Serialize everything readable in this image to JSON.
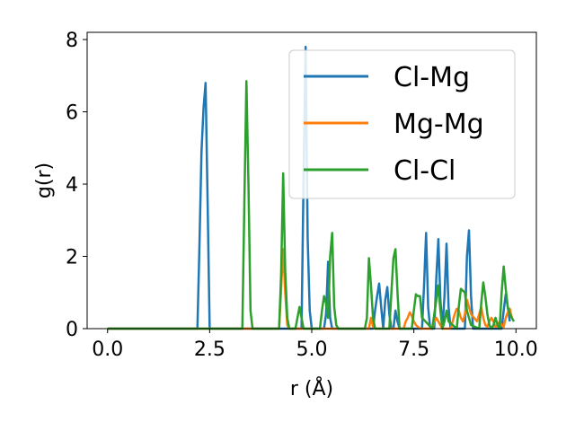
{
  "chart_data": {
    "type": "line",
    "xlabel": "r (Å)",
    "ylabel": "g(r)",
    "xlim": [
      -0.5,
      10.5
    ],
    "ylim": [
      0,
      8.2
    ],
    "xticks": [
      0.0,
      2.5,
      5.0,
      7.5,
      10.0
    ],
    "xtick_labels": [
      "0.0",
      "2.5",
      "5.0",
      "7.5",
      "10.0"
    ],
    "yticks": [
      0,
      2,
      4,
      6,
      8
    ],
    "ytick_labels": [
      "0",
      "2",
      "4",
      "6",
      "8"
    ],
    "grid": false,
    "legend_position": "upper-right",
    "series": [
      {
        "name": "Cl-Mg",
        "color": "#1f77b4",
        "x": [
          0.0,
          2.2,
          2.25,
          2.3,
          2.35,
          2.4,
          2.45,
          2.5,
          2.55,
          4.75,
          4.8,
          4.85,
          4.9,
          4.95,
          5.0,
          5.05,
          5.1,
          5.3,
          5.35,
          5.4,
          5.45,
          5.5,
          6.5,
          6.55,
          6.6,
          6.65,
          6.7,
          6.75,
          6.8,
          6.85,
          6.9,
          6.95,
          7.0,
          7.05,
          7.1,
          7.15,
          7.7,
          7.75,
          7.8,
          7.85,
          7.9,
          7.95,
          8.0,
          8.05,
          8.1,
          8.15,
          8.2,
          8.25,
          8.3,
          8.35,
          8.4,
          8.45,
          8.75,
          8.8,
          8.85,
          8.9,
          8.95,
          9.65,
          9.7,
          9.75,
          9.8,
          9.85
        ],
        "y": [
          0,
          0,
          2.3,
          4.9,
          6.1,
          6.8,
          3.5,
          0,
          0,
          0,
          4.2,
          7.8,
          2.5,
          0.5,
          0,
          0,
          0,
          0,
          0.4,
          1.85,
          0.3,
          0,
          0,
          0.5,
          0.9,
          1.25,
          0.6,
          0,
          0.8,
          1.15,
          0.4,
          0,
          0,
          0.5,
          0.2,
          0,
          0,
          1.2,
          2.65,
          0.6,
          0,
          0,
          0,
          1.4,
          2.48,
          0.8,
          0,
          0.9,
          2.35,
          0.6,
          0,
          0,
          0,
          2.0,
          2.72,
          0.9,
          0,
          0,
          0.5,
          0.95,
          0.6,
          0.2
        ]
      },
      {
        "name": "Mg-Mg",
        "color": "#ff7f0e",
        "x": [
          0.0,
          4.2,
          4.25,
          4.3,
          4.35,
          4.4,
          4.45,
          6.4,
          6.45,
          6.5,
          6.55,
          7.25,
          7.3,
          7.35,
          7.4,
          7.45,
          7.5,
          7.55,
          7.6,
          7.65,
          7.95,
          8.0,
          8.05,
          8.1,
          8.15,
          8.2,
          8.4,
          8.45,
          8.5,
          8.55,
          8.6,
          8.65,
          8.7,
          8.75,
          8.8,
          8.85,
          8.9,
          9.05,
          9.1,
          9.15,
          9.2,
          9.25,
          9.3,
          9.35,
          9.4,
          9.45,
          9.5,
          9.55,
          9.6,
          9.65,
          9.7,
          9.75,
          9.8,
          9.85,
          9.9
        ],
        "y": [
          0,
          0,
          1.1,
          2.2,
          1.0,
          0.1,
          0,
          0,
          0.3,
          0.05,
          0,
          0,
          0.2,
          0.3,
          0.45,
          0.35,
          0.2,
          0.1,
          0.05,
          0,
          0,
          0.2,
          0.3,
          0.2,
          0.1,
          0,
          0,
          0.2,
          0.4,
          0.55,
          0.5,
          0.3,
          0.2,
          0.4,
          0.8,
          0.6,
          0.4,
          0.2,
          0.4,
          0.6,
          0.3,
          0.1,
          0.05,
          0.2,
          0.3,
          0.2,
          0.05,
          0.1,
          0.2,
          0.1,
          0.05,
          0.3,
          0.45,
          0.55,
          0.3
        ]
      },
      {
        "name": "Cl-Cl",
        "color": "#2ca02c",
        "x": [
          0.0,
          3.3,
          3.35,
          3.4,
          3.45,
          3.5,
          3.55,
          4.2,
          4.25,
          4.3,
          4.35,
          4.4,
          4.45,
          4.5,
          4.6,
          4.65,
          4.7,
          4.75,
          4.8,
          5.2,
          5.25,
          5.3,
          5.35,
          5.4,
          5.45,
          5.5,
          5.55,
          5.6,
          5.65,
          6.3,
          6.35,
          6.4,
          6.45,
          6.5,
          6.55,
          6.9,
          6.95,
          7.0,
          7.05,
          7.1,
          7.15,
          7.45,
          7.5,
          7.55,
          7.6,
          7.65,
          7.7,
          7.95,
          8.0,
          8.05,
          8.1,
          8.15,
          8.2,
          8.25,
          8.3,
          8.35,
          8.55,
          8.6,
          8.65,
          8.7,
          8.75,
          8.8,
          8.85,
          8.9,
          9.1,
          9.15,
          9.2,
          9.25,
          9.3,
          9.35,
          9.4,
          9.45,
          9.5,
          9.55,
          9.6,
          9.65,
          9.7,
          9.75,
          9.8,
          9.85,
          9.9,
          9.95
        ],
        "y": [
          0,
          0,
          3.5,
          6.85,
          4.0,
          0.5,
          0,
          0,
          1.5,
          4.3,
          1.6,
          0.3,
          0,
          0,
          0,
          0.3,
          0.6,
          0.3,
          0,
          0,
          0.5,
          0.9,
          0.7,
          0.3,
          2.0,
          2.65,
          0.6,
          0.1,
          0,
          0,
          0.3,
          1.95,
          1.2,
          0.3,
          0,
          0,
          1.0,
          1.95,
          2.2,
          1.0,
          0,
          0,
          0.5,
          0.95,
          0.9,
          0.9,
          0.3,
          0,
          0.4,
          0.8,
          1.2,
          0.5,
          0,
          0.2,
          0.5,
          0.2,
          0,
          0.6,
          1.1,
          1.05,
          1.0,
          0.5,
          0.3,
          0.1,
          0,
          0.7,
          1.28,
          0.9,
          0.4,
          0.1,
          0,
          0.1,
          0.3,
          0.1,
          0,
          1.0,
          1.72,
          1.1,
          0.6,
          0.4,
          0.3,
          0.2
        ]
      }
    ]
  }
}
